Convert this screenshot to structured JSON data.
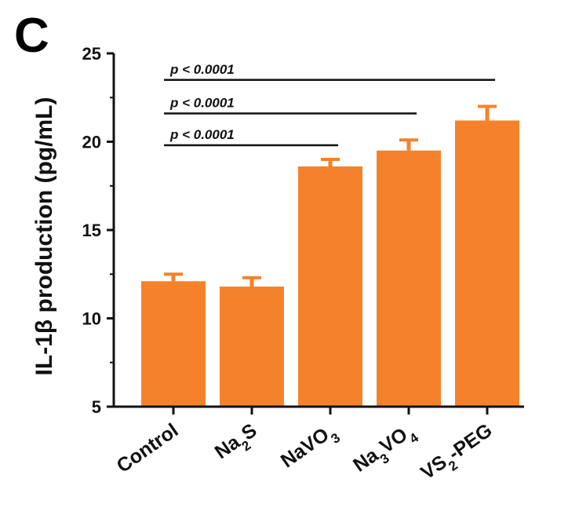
{
  "panel_label": "C",
  "chart_data": {
    "type": "bar",
    "ylabel": "IL-1β production (pg/mL)",
    "xlabel": "",
    "ylim": [
      5,
      25
    ],
    "yticks": [
      5,
      10,
      15,
      20,
      25
    ],
    "categories": [
      {
        "base": "Control",
        "parts": [
          [
            "Control",
            ""
          ]
        ]
      },
      {
        "base": "Na2S",
        "parts": [
          [
            "Na",
            ""
          ],
          [
            "2",
            "sub"
          ],
          [
            "S",
            ""
          ]
        ]
      },
      {
        "base": "NaVO3",
        "parts": [
          [
            "NaVO",
            ""
          ],
          [
            "3",
            "sub"
          ]
        ]
      },
      {
        "base": "Na3VO4",
        "parts": [
          [
            "Na",
            ""
          ],
          [
            "3",
            "sub"
          ],
          [
            "VO",
            ""
          ],
          [
            "4",
            "sub"
          ]
        ]
      },
      {
        "base": "VS2-PEG",
        "parts": [
          [
            "VS",
            ""
          ],
          [
            "2",
            "sub"
          ],
          [
            "-PEG",
            ""
          ]
        ]
      }
    ],
    "values": [
      12.1,
      11.8,
      18.6,
      19.5,
      21.2
    ],
    "errors": [
      0.4,
      0.5,
      0.4,
      0.6,
      0.8
    ],
    "bar_color": "#f5822a",
    "significance": [
      {
        "from": 0,
        "to": 2,
        "label": "p < 0.0001",
        "y": 19.8
      },
      {
        "from": 0,
        "to": 3,
        "label": "p < 0.0001",
        "y": 21.6
      },
      {
        "from": 0,
        "to": 4,
        "label": "p < 0.0001",
        "y": 23.5
      }
    ]
  }
}
